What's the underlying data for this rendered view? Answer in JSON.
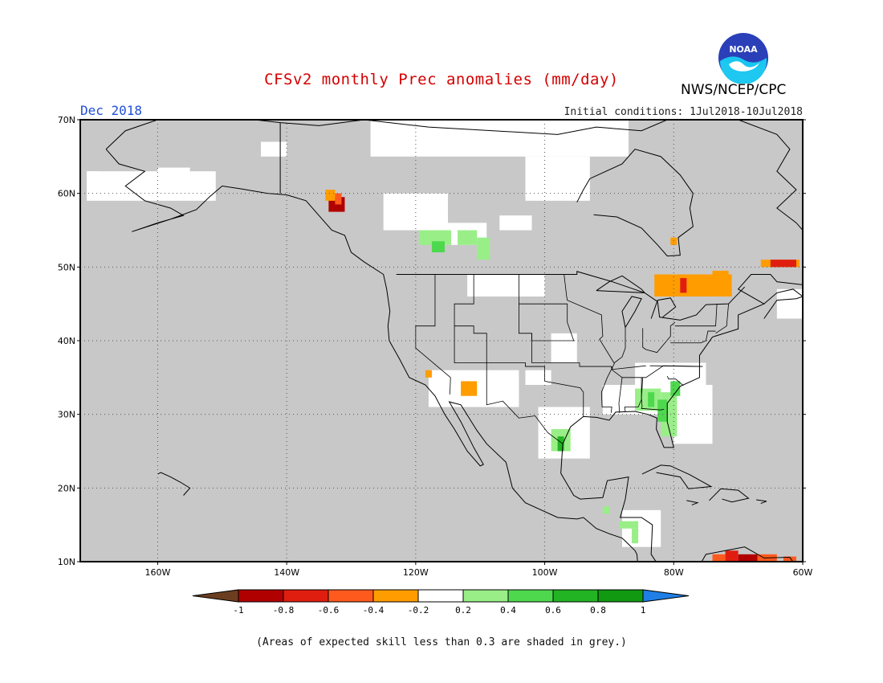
{
  "title": "CFSv2 monthly Prec anomalies (mm/day)",
  "month_label": "Dec 2018",
  "initial_conditions": "Initial conditions: 1Jul2018-10Jul2018",
  "agency": "NWS/NCEP/CPC",
  "logo_text": "NOAA",
  "footnote": "(Areas of expected skill less than 0.3 are shaded in grey.)",
  "map": {
    "lon_range": [
      -172,
      -60
    ],
    "lat_range": [
      10,
      70
    ],
    "lat_ticks": [
      "10N",
      "20N",
      "30N",
      "40N",
      "50N",
      "60N",
      "70N"
    ],
    "lon_ticks": [
      "160W",
      "140W",
      "120W",
      "100W",
      "80W",
      "60W"
    ],
    "grid": true,
    "low_skill_color": "#c8c8c8",
    "ocean_color": "#c8c8c8"
  },
  "colorbar": {
    "ticks": [
      "-1",
      "-0.8",
      "-0.6",
      "-0.4",
      "-0.2",
      "0.2",
      "0.4",
      "0.6",
      "0.8",
      "1"
    ],
    "colors": [
      "#6b3e1f",
      "#b00000",
      "#e01e10",
      "#ff5a1e",
      "#ff9d00",
      "#ffffff",
      "#99ee88",
      "#4ed84e",
      "#22b422",
      "#119911",
      "#1f7fe6"
    ]
  },
  "anomaly_regions": [
    {
      "lon": -133.5,
      "lat": 57.5,
      "w": 2.5,
      "h": 2,
      "color": "#b00000"
    },
    {
      "lon": -134,
      "lat": 59,
      "w": 1.5,
      "h": 1.5,
      "color": "#ff9d00"
    },
    {
      "lon": -132.5,
      "lat": 58.5,
      "w": 1,
      "h": 1.5,
      "color": "#ff5a1e"
    },
    {
      "lon": -119.5,
      "lat": 53,
      "w": 5,
      "h": 2,
      "color": "#99ee88"
    },
    {
      "lon": -117.5,
      "lat": 52,
      "w": 2,
      "h": 1.5,
      "color": "#4ed84e"
    },
    {
      "lon": -110.5,
      "lat": 51,
      "w": 2,
      "h": 3,
      "color": "#99ee88"
    },
    {
      "lon": -113.5,
      "lat": 53,
      "w": 3,
      "h": 2,
      "color": "#99ee88"
    },
    {
      "lon": -83,
      "lat": 46,
      "w": 12,
      "h": 3,
      "color": "#ff9d00"
    },
    {
      "lon": -74,
      "lat": 48,
      "w": 2.5,
      "h": 1.5,
      "color": "#ff9d00"
    },
    {
      "lon": -79,
      "lat": 46.5,
      "w": 1,
      "h": 2,
      "color": "#e01e10"
    },
    {
      "lon": -66.5,
      "lat": 50,
      "w": 6,
      "h": 1,
      "color": "#ff9d00"
    },
    {
      "lon": -65,
      "lat": 50,
      "w": 4,
      "h": 1,
      "color": "#e01e10"
    },
    {
      "lon": -80.5,
      "lat": 53,
      "w": 1,
      "h": 1,
      "color": "#ff9d00"
    },
    {
      "lon": -113,
      "lat": 32.5,
      "w": 2.5,
      "h": 2,
      "color": "#ff9d00"
    },
    {
      "lon": -118.5,
      "lat": 35,
      "w": 1,
      "h": 1,
      "color": "#ff9d00"
    },
    {
      "lon": -86,
      "lat": 30.5,
      "w": 4,
      "h": 3,
      "color": "#99ee88"
    },
    {
      "lon": -82,
      "lat": 27,
      "w": 2.5,
      "h": 6,
      "color": "#99ee88"
    },
    {
      "lon": -82.5,
      "lat": 29,
      "w": 1.5,
      "h": 3,
      "color": "#4ed84e"
    },
    {
      "lon": -84,
      "lat": 31,
      "w": 1,
      "h": 2,
      "color": "#4ed84e"
    },
    {
      "lon": -80.5,
      "lat": 32.5,
      "w": 1.5,
      "h": 2,
      "color": "#4ed84e"
    },
    {
      "lon": -99,
      "lat": 25,
      "w": 3,
      "h": 3,
      "color": "#99ee88"
    },
    {
      "lon": -98,
      "lat": 25,
      "w": 1,
      "h": 2,
      "color": "#22b422"
    },
    {
      "lon": -88.5,
      "lat": 14.5,
      "w": 3,
      "h": 1,
      "color": "#99ee88"
    },
    {
      "lon": -86.5,
      "lat": 12.5,
      "w": 1,
      "h": 2,
      "color": "#99ee88"
    },
    {
      "lon": -91,
      "lat": 16.5,
      "w": 1,
      "h": 1,
      "color": "#99ee88"
    },
    {
      "lon": -70,
      "lat": 10,
      "w": 3,
      "h": 1,
      "color": "#b00000"
    },
    {
      "lon": -72,
      "lat": 10,
      "w": 2,
      "h": 1.5,
      "color": "#e01e10"
    },
    {
      "lon": -74,
      "lat": 10,
      "w": 2,
      "h": 1,
      "color": "#ff5a1e"
    },
    {
      "lon": -67,
      "lat": 10,
      "w": 3,
      "h": 1,
      "color": "#ff5a1e"
    },
    {
      "lon": -63,
      "lat": 10,
      "w": 2,
      "h": 0.7,
      "color": "#ff5a1e"
    }
  ],
  "skill_regions": [
    {
      "lon": -171,
      "lat": 59,
      "w": 20,
      "h": 4
    },
    {
      "lon": -160,
      "lat": 60.5,
      "w": 5,
      "h": 3
    },
    {
      "lon": -144,
      "lat": 65,
      "w": 4,
      "h": 2
    },
    {
      "lon": -125,
      "lat": 55,
      "w": 10,
      "h": 5
    },
    {
      "lon": -117,
      "lat": 53,
      "w": 8,
      "h": 3
    },
    {
      "lon": -127,
      "lat": 65,
      "w": 40,
      "h": 5
    },
    {
      "lon": -103,
      "lat": 59,
      "w": 10,
      "h": 6
    },
    {
      "lon": -107,
      "lat": 55,
      "w": 5,
      "h": 2
    },
    {
      "lon": -112,
      "lat": 46,
      "w": 12,
      "h": 3
    },
    {
      "lon": -99,
      "lat": 37,
      "w": 4,
      "h": 4
    },
    {
      "lon": -118,
      "lat": 31,
      "w": 14,
      "h": 5
    },
    {
      "lon": -103,
      "lat": 34,
      "w": 4,
      "h": 2
    },
    {
      "lon": -101,
      "lat": 24,
      "w": 8,
      "h": 7
    },
    {
      "lon": -91,
      "lat": 30,
      "w": 6,
      "h": 4
    },
    {
      "lon": -86,
      "lat": 30,
      "w": 10,
      "h": 7
    },
    {
      "lon": -84,
      "lat": 34,
      "w": 9,
      "h": 3
    },
    {
      "lon": -80,
      "lat": 26,
      "w": 6,
      "h": 8
    },
    {
      "lon": -88,
      "lat": 12,
      "w": 6,
      "h": 5
    },
    {
      "lon": -64,
      "lat": 43,
      "w": 4,
      "h": 4
    },
    {
      "lon": -171,
      "lat": 61,
      "w": 2,
      "h": 2
    }
  ],
  "land_paths": [
    "-168,66 -165,68.5 -160,70 -150,70.5 -141,69.6 -135,69.2 -128,70 -118,69 -108,68.5 -98,68 -92,69 -85,68.5 -81,70 -70,70 -64,68 -62,66 -64,63 -61,60.5 -64,58 -61,56 -59,54 -56,52 -56,49 -59,47.5 -64,48 -65,49 -68,49 -70,47 -66,45 -70,43.5 -70,41.6 -74,40.5 -76,38 -76,35 -79,33.8 -81,31.5 -81,29 -80,25.5 -81.5,25.5 -82.7,28 -82.6,29.5 -84,30 -86,30.4 -89,30.3 -90,29.2 -92,29.6 -94,29.7 -96,28.3 -97.2,26 -97.5,22 -95.5,19 -94.5,18.5 -91,18.7 -90.3,21 -87,21.5 -87.5,18.5 -88.3,16 -85,16 -83.3,15 -83.5,11 -82,9 -80,8 -78.5,9 -77,8 -75,11 -72,11.5 -69,12 -66,10.5 -62,10.6 -60,8 -60,8",
    "-60,8 -60,10 -60,10"
  ]
}
